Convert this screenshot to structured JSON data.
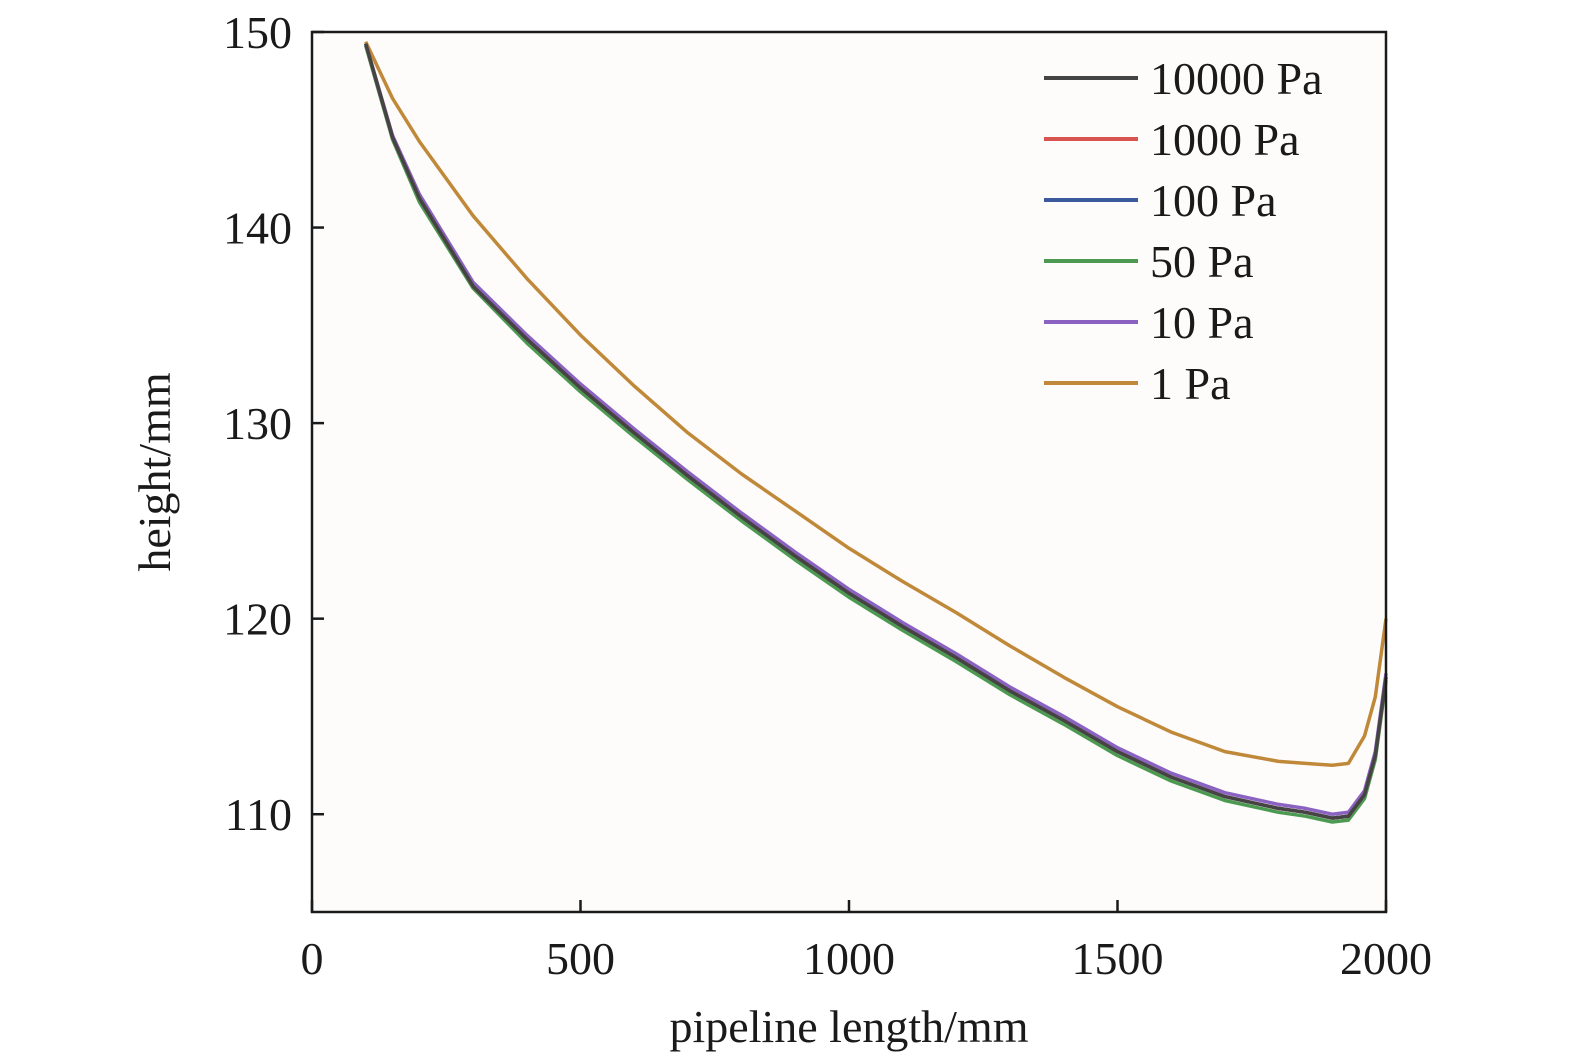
{
  "chart_data": {
    "type": "line",
    "title": "",
    "xlabel": "pipeline length/mm",
    "ylabel": "height/mm",
    "xlim": [
      0,
      2000
    ],
    "ylim": [
      105,
      150
    ],
    "xticks": [
      0,
      500,
      1000,
      1500,
      2000
    ],
    "yticks": [
      110,
      120,
      130,
      140,
      150
    ],
    "grid": false,
    "legend_position": "top-right",
    "x": [
      100,
      150,
      200,
      300,
      400,
      500,
      600,
      700,
      800,
      900,
      1000,
      1100,
      1200,
      1300,
      1400,
      1500,
      1600,
      1700,
      1800,
      1850,
      1900,
      1930,
      1960,
      1980,
      2000
    ],
    "series": [
      {
        "name": "10000 Pa",
        "color": "#444444",
        "values": [
          149.4,
          144.6,
          141.5,
          137.0,
          134.3,
          131.8,
          129.5,
          127.3,
          125.2,
          123.2,
          121.3,
          119.6,
          118.0,
          116.3,
          114.8,
          113.2,
          111.9,
          110.9,
          110.3,
          110.1,
          109.8,
          109.9,
          111.0,
          113.0,
          117.0
        ]
      },
      {
        "name": "1000 Pa",
        "color": "#d9534f",
        "values": [
          149.4,
          144.6,
          141.5,
          137.0,
          134.3,
          131.8,
          129.5,
          127.3,
          125.2,
          123.2,
          121.3,
          119.6,
          118.0,
          116.3,
          114.8,
          113.2,
          111.9,
          110.9,
          110.3,
          110.1,
          109.8,
          109.9,
          111.0,
          113.0,
          117.0
        ]
      },
      {
        "name": "100 Pa",
        "color": "#3a5a9c",
        "values": [
          149.4,
          144.6,
          141.5,
          137.0,
          134.3,
          131.8,
          129.5,
          127.3,
          125.2,
          123.2,
          121.3,
          119.6,
          118.0,
          116.3,
          114.8,
          113.2,
          111.9,
          110.9,
          110.3,
          110.1,
          109.8,
          109.9,
          111.0,
          113.0,
          117.0
        ]
      },
      {
        "name": "50 Pa",
        "color": "#4c9a52",
        "values": [
          149.3,
          144.5,
          141.3,
          136.9,
          134.1,
          131.6,
          129.3,
          127.1,
          125.0,
          123.0,
          121.1,
          119.4,
          117.8,
          116.1,
          114.6,
          113.0,
          111.7,
          110.7,
          110.1,
          109.9,
          109.6,
          109.7,
          110.8,
          112.8,
          116.8
        ]
      },
      {
        "name": "10 Pa",
        "color": "#8a63c2",
        "values": [
          149.4,
          144.7,
          141.7,
          137.2,
          134.5,
          132.0,
          129.7,
          127.5,
          125.4,
          123.4,
          121.5,
          119.8,
          118.2,
          116.5,
          115.0,
          113.4,
          112.1,
          111.1,
          110.5,
          110.3,
          110.0,
          110.1,
          111.2,
          113.2,
          117.2
        ]
      },
      {
        "name": "1 Pa",
        "color": "#c0893a",
        "values": [
          149.5,
          146.6,
          144.4,
          140.6,
          137.4,
          134.5,
          131.9,
          129.5,
          127.4,
          125.5,
          123.6,
          121.9,
          120.3,
          118.6,
          117.0,
          115.5,
          114.2,
          113.2,
          112.7,
          112.6,
          112.5,
          112.6,
          114.0,
          116.0,
          120.0
        ]
      }
    ]
  }
}
